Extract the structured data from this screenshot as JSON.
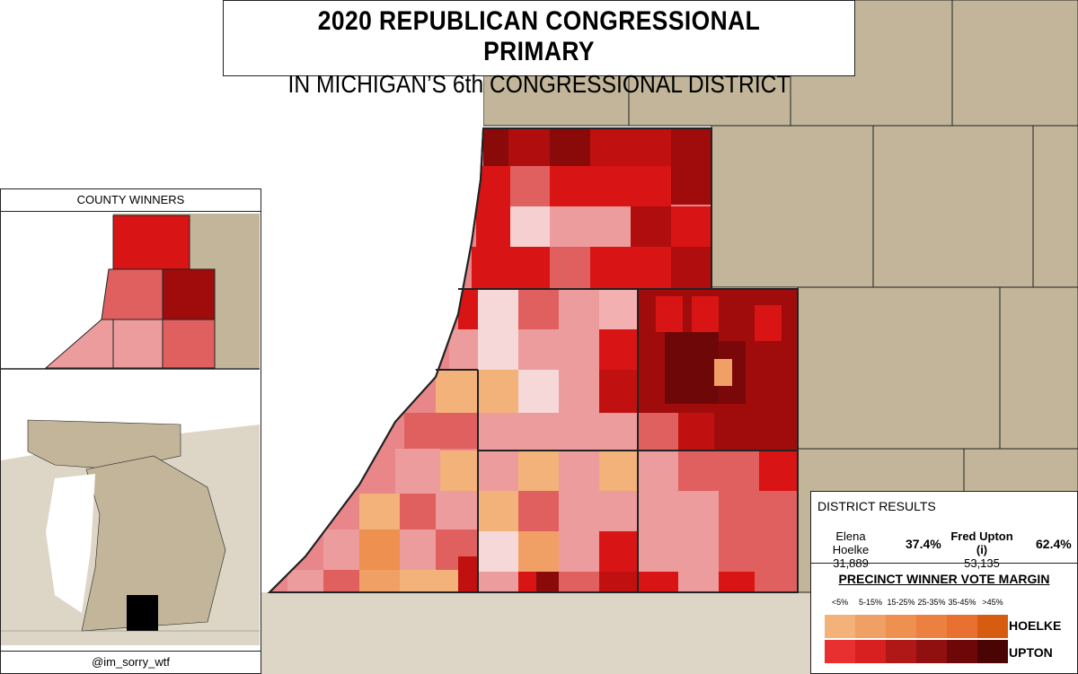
{
  "title": {
    "line1": "2020 REPUBLICAN CONGRESSIONAL PRIMARY",
    "line2": "IN MICHIGAN’S 6th CONGRESSIONAL DISTRICT"
  },
  "inset": {
    "header": "COUNTY WINNERS",
    "credit": "@im_sorry_wtf"
  },
  "results": {
    "header": "DISTRICT RESULTS",
    "candidates": [
      {
        "name": "Elena Hoelke",
        "votes": "31,889",
        "pct": "37.4%"
      },
      {
        "name": "Fred Upton (i)",
        "votes": "53,135",
        "pct": "62.4%"
      }
    ]
  },
  "legend": {
    "title": "PRECINCT WINNER VOTE MARGIN",
    "bins": [
      "<5%",
      "5-15%",
      "15-25%",
      "25-35%",
      "35-45%",
      ">45%"
    ],
    "hoelke_label": "HOELKE",
    "upton_label": "UPTON",
    "hoelke_colors": [
      "#f2b27a",
      "#f0a064",
      "#ee9050",
      "#ec8040",
      "#e87030",
      "#d85c10"
    ],
    "upton_colors": [
      "#e83030",
      "#d82020",
      "#b01818",
      "#901010",
      "#6e0808",
      "#4a0404"
    ]
  },
  "colors": {
    "land": "#c2b59a",
    "outside_land": "#ddd6c6",
    "water": "#ffffff",
    "border": "#222222",
    "inset_target": "#000000"
  }
}
